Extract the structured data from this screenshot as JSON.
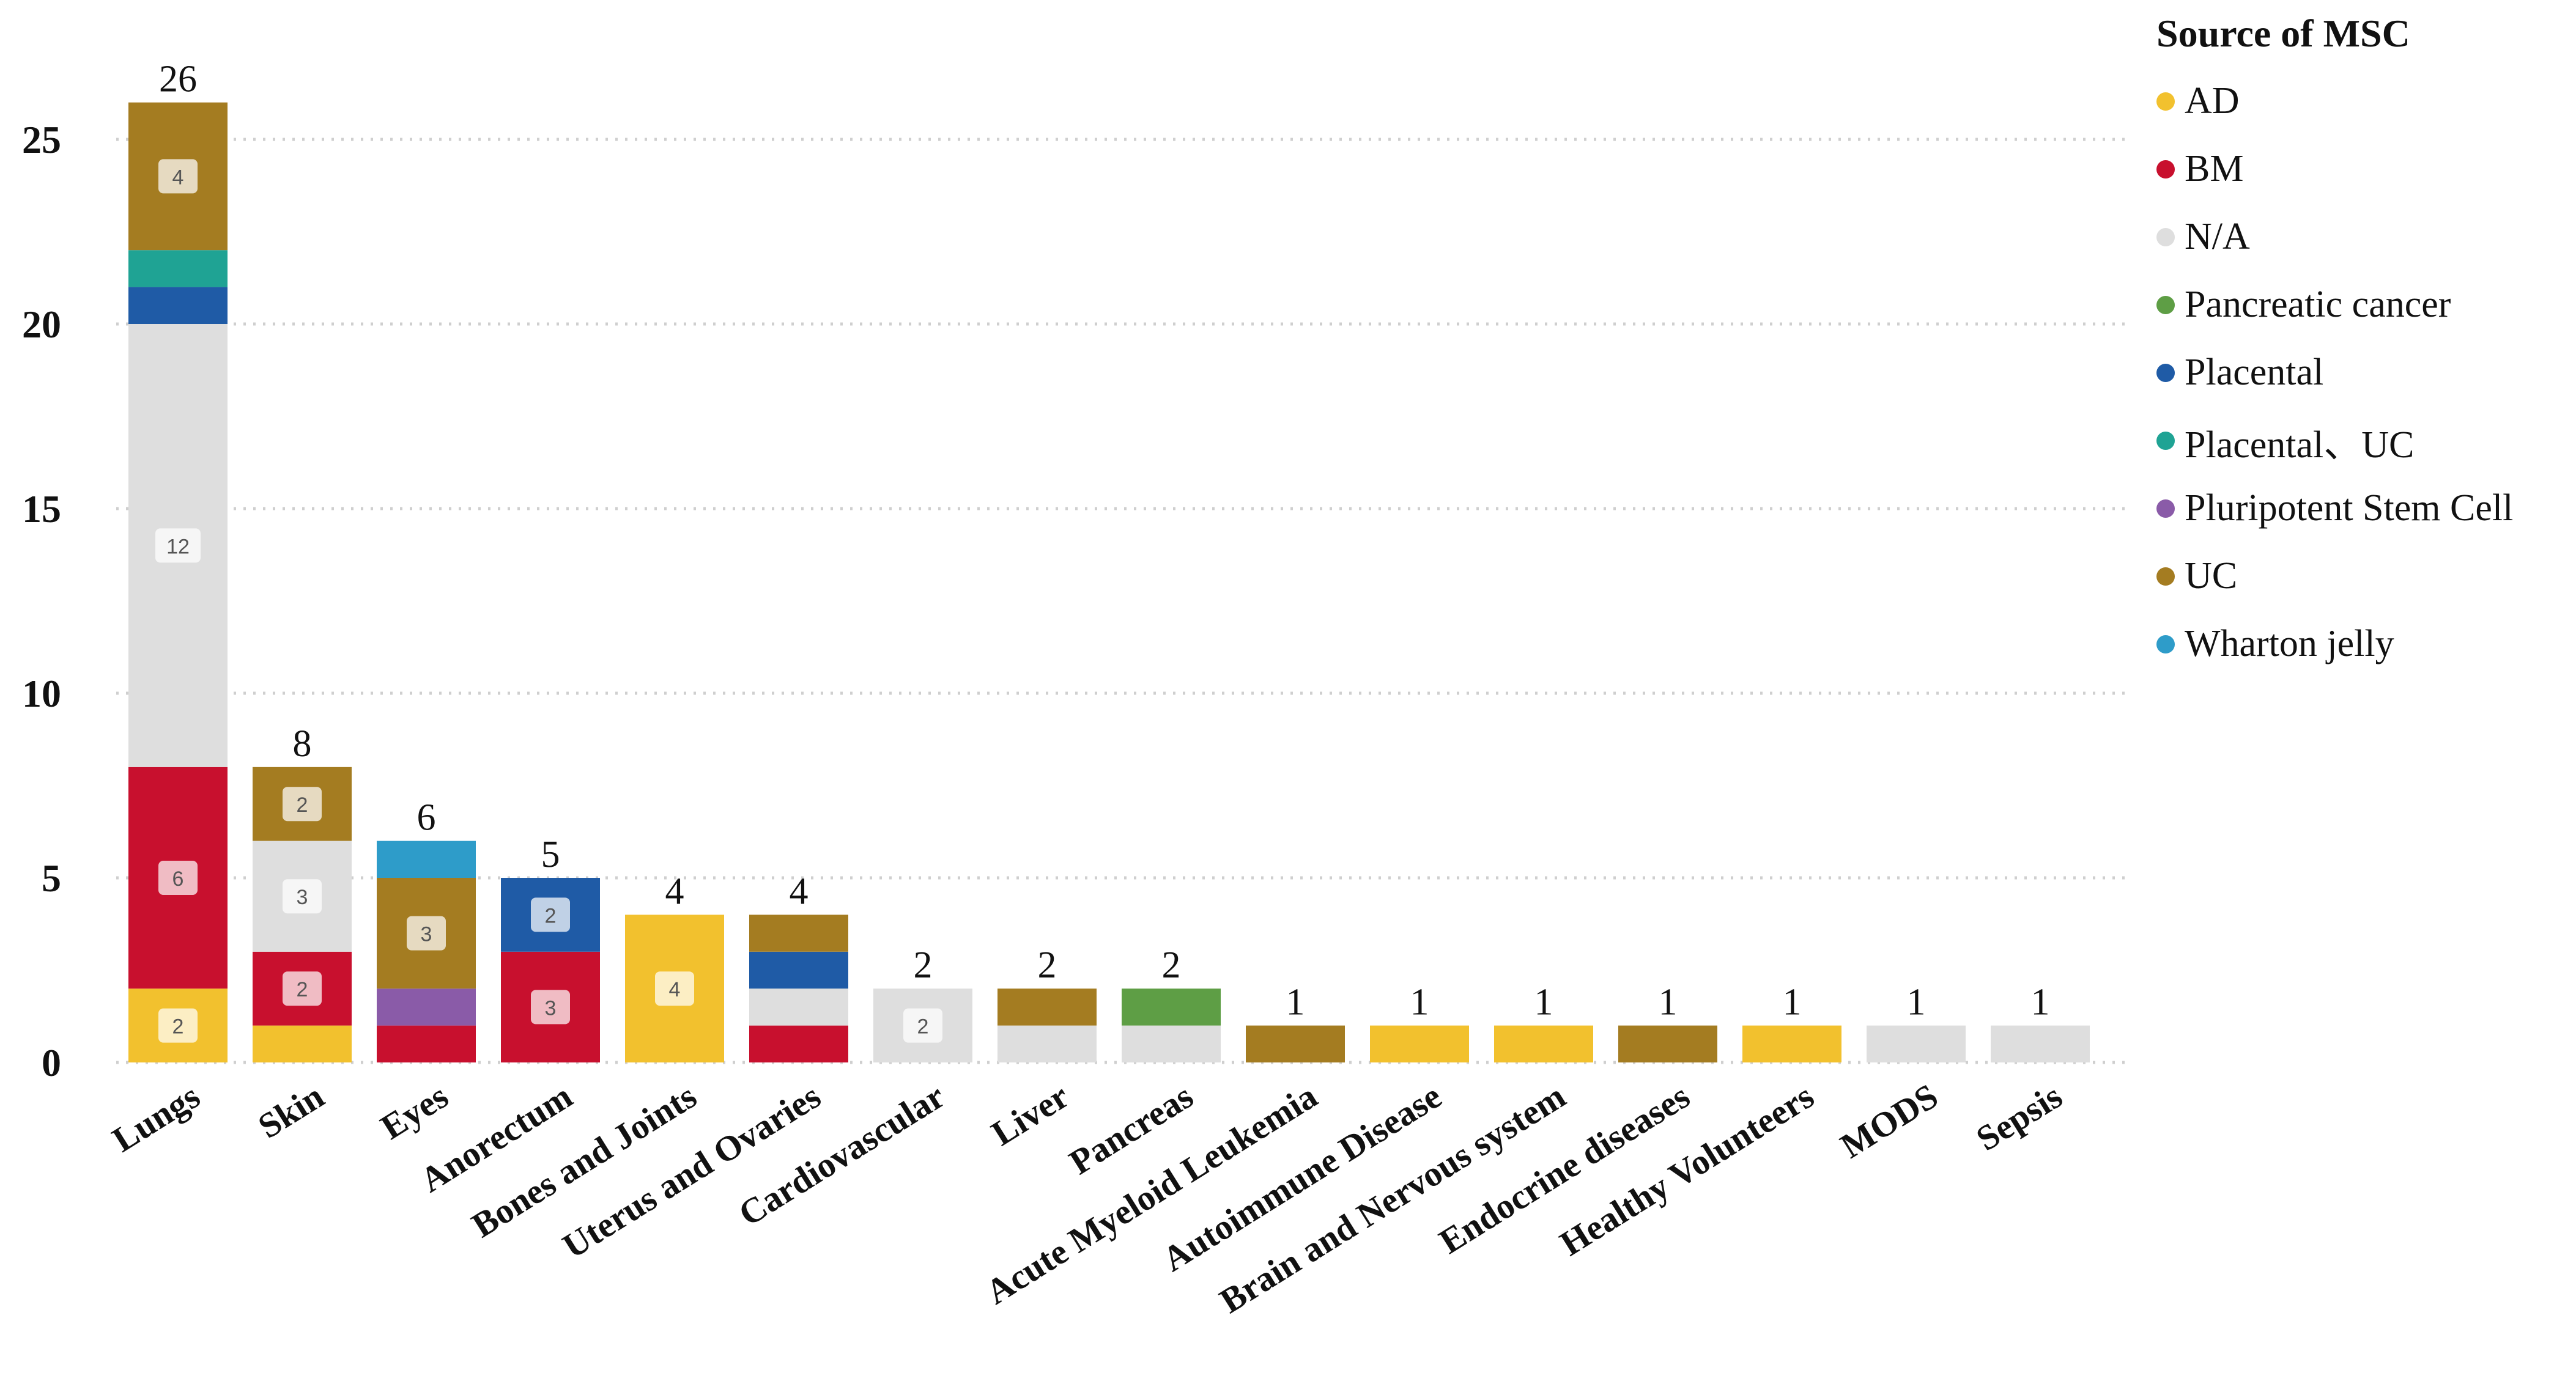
{
  "chart_data": {
    "type": "bar",
    "stacked": true,
    "title": "",
    "xlabel": "",
    "ylabel": "",
    "ylim": [
      0,
      27
    ],
    "yticks": [
      0,
      5,
      10,
      15,
      20,
      25
    ],
    "grid": "horizontal dotted",
    "legend_title": "Source of MSC",
    "legend_position": "right",
    "categories": [
      "Lungs",
      "Skin",
      "Eyes",
      "Anorectum",
      "Bones and Joints",
      "Uterus and Ovaries",
      "Cardiovascular",
      "Liver",
      "Pancreas",
      "Acute Myeloid Leukemia",
      "Autoimmune Disease",
      "Brain and Nervous system",
      "Endocrine diseases",
      "Healthy Volunteers",
      "MODS",
      "Sepsis"
    ],
    "totals": [
      26,
      8,
      6,
      5,
      4,
      4,
      2,
      2,
      2,
      1,
      1,
      1,
      1,
      1,
      1,
      1
    ],
    "series": [
      {
        "name": "AD",
        "color": "#F2C12E",
        "values": [
          2,
          1,
          0,
          0,
          4,
          0,
          0,
          0,
          0,
          0,
          1,
          1,
          0,
          1,
          0,
          0
        ]
      },
      {
        "name": "BM",
        "color": "#C8102E",
        "values": [
          6,
          2,
          1,
          3,
          0,
          1,
          0,
          0,
          0,
          0,
          0,
          0,
          0,
          0,
          0,
          0
        ]
      },
      {
        "name": "N/A",
        "color": "#DEDEDE",
        "values": [
          12,
          3,
          0,
          0,
          0,
          1,
          2,
          1,
          1,
          0,
          0,
          0,
          0,
          0,
          1,
          1
        ]
      },
      {
        "name": "Pancreatic cancer",
        "color": "#5E9E45",
        "values": [
          0,
          0,
          0,
          0,
          0,
          0,
          0,
          0,
          1,
          0,
          0,
          0,
          0,
          0,
          0,
          0
        ]
      },
      {
        "name": "Placental",
        "color": "#1F5BA6",
        "values": [
          1,
          0,
          0,
          2,
          0,
          1,
          0,
          0,
          0,
          0,
          0,
          0,
          0,
          0,
          0,
          0
        ]
      },
      {
        "name": "Placental、UC",
        "color": "#1FA394",
        "values": [
          1,
          0,
          0,
          0,
          0,
          0,
          0,
          0,
          0,
          0,
          0,
          0,
          0,
          0,
          0,
          0
        ]
      },
      {
        "name": "Pluripotent Stem Cell",
        "color": "#8A5BA8",
        "values": [
          0,
          0,
          1,
          0,
          0,
          0,
          0,
          0,
          0,
          0,
          0,
          0,
          0,
          0,
          0,
          0
        ]
      },
      {
        "name": "UC",
        "color": "#A47C21",
        "values": [
          4,
          2,
          3,
          0,
          0,
          1,
          0,
          1,
          0,
          1,
          0,
          0,
          1,
          0,
          0,
          0
        ]
      },
      {
        "name": "Wharton jelly",
        "color": "#2E9CC9",
        "values": [
          0,
          0,
          1,
          0,
          0,
          0,
          0,
          0,
          0,
          0,
          0,
          0,
          0,
          0,
          0,
          0
        ]
      }
    ],
    "segment_labels": [
      {
        "category": "Lungs",
        "series": "AD",
        "text": "2"
      },
      {
        "category": "Lungs",
        "series": "BM",
        "text": "6"
      },
      {
        "category": "Lungs",
        "series": "N/A",
        "text": "12"
      },
      {
        "category": "Lungs",
        "series": "UC",
        "text": "4"
      },
      {
        "category": "Skin",
        "series": "BM",
        "text": "2"
      },
      {
        "category": "Skin",
        "series": "N/A",
        "text": "3"
      },
      {
        "category": "Skin",
        "series": "UC",
        "text": "2"
      },
      {
        "category": "Eyes",
        "series": "UC",
        "text": "3"
      },
      {
        "category": "Anorectum",
        "series": "BM",
        "text": "3"
      },
      {
        "category": "Anorectum",
        "series": "Placental",
        "text": "2"
      },
      {
        "category": "Bones and Joints",
        "series": "AD",
        "text": "4"
      },
      {
        "category": "Cardiovascular",
        "series": "N/A",
        "text": "2"
      }
    ]
  }
}
